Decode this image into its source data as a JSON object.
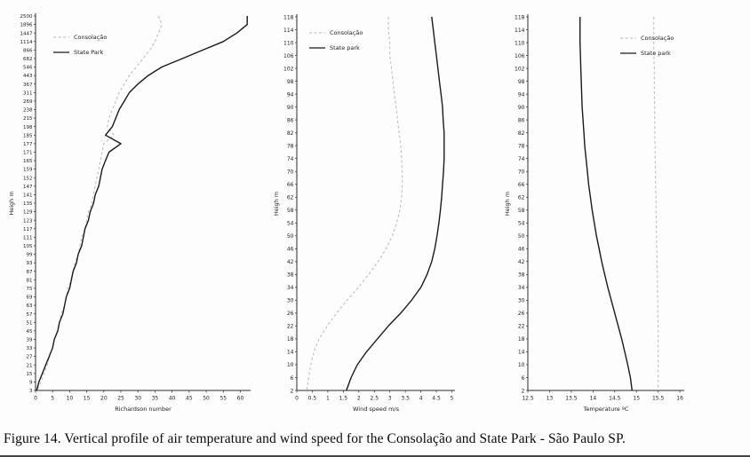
{
  "caption": "Figure 14. Vertical profile of air temperature and wind speed for the Consolação and State Park - São Paulo SP.",
  "colors": {
    "consolacao_line": "#b9b9b9",
    "state_park_line": "#1a1a1a",
    "axis": "#2b2b2b"
  },
  "chart_data": [
    {
      "type": "line",
      "title": "",
      "xlabel": "Richardson number",
      "ylabel": "Heigh m",
      "xlim": [
        0,
        63
      ],
      "x_ticks": [
        0,
        5,
        10,
        15,
        20,
        25,
        30,
        35,
        40,
        45,
        50,
        55,
        60
      ],
      "x_tick_labels": [
        "0",
        "5",
        "10",
        "15",
        "20",
        "25",
        "30",
        "35",
        "40",
        "45",
        "50",
        "55",
        "60"
      ],
      "y_categories": [
        "2500",
        "1896",
        "1447",
        "1114",
        "866",
        "682",
        "546",
        "443",
        "367",
        "311",
        "269",
        "238",
        "215",
        "198",
        "185",
        "177",
        "171",
        "165",
        "159",
        "152",
        "147",
        "141",
        "135",
        "129",
        "123",
        "117",
        "111",
        "105",
        "99",
        "93",
        "87",
        "81",
        "75",
        "69",
        "63",
        "57",
        "51",
        "45",
        "39",
        "33",
        "27",
        "21",
        "15",
        "9",
        "3"
      ],
      "legend_position": "top-left",
      "grid": false,
      "series": [
        {
          "name": "Consolação",
          "style": "dashed",
          "color": "#b9b9b9",
          "values": [
            36,
            37,
            36,
            35,
            33.5,
            31.5,
            29.5,
            27.5,
            26,
            24.5,
            23.5,
            22.5,
            21.5,
            21,
            23,
            20,
            19.5,
            19,
            18.5,
            18,
            17.5,
            17,
            16.5,
            15.5,
            15,
            14.5,
            13.5,
            13,
            12.5,
            11.5,
            11,
            10.5,
            9.5,
            9,
            8.5,
            7.5,
            7,
            6.5,
            5.5,
            5,
            4,
            3.5,
            2.5,
            1.5,
            0.5
          ]
        },
        {
          "name": "State Park",
          "style": "solid",
          "color": "#1a1a1a",
          "values": [
            62,
            62,
            59,
            55,
            49,
            43,
            37,
            33,
            30,
            27.5,
            26,
            24.5,
            23.5,
            22.5,
            20.5,
            25,
            21.5,
            20.5,
            19.5,
            19,
            18.5,
            17.5,
            17,
            16,
            15.5,
            14.5,
            14,
            13.5,
            12.5,
            12,
            11,
            10.5,
            10,
            9,
            8.5,
            8,
            7,
            6.5,
            5.5,
            5,
            4,
            3,
            2,
            1,
            0.3
          ]
        }
      ]
    },
    {
      "type": "line",
      "title": "",
      "xlabel": "Wind speed m/s",
      "ylabel": "Heigh m",
      "xlim": [
        0,
        5.1
      ],
      "x_ticks": [
        0,
        0.5,
        1,
        1.5,
        2,
        2.5,
        3,
        3.5,
        4,
        4.5,
        5
      ],
      "x_tick_labels": [
        "0",
        "0.5",
        "1",
        "1.5",
        "2",
        "2.5",
        "3",
        "3.5",
        "4",
        "4.5",
        "5"
      ],
      "y_categories": [
        "118",
        "114",
        "110",
        "106",
        "102",
        "98",
        "94",
        "90",
        "86",
        "82",
        "78",
        "74",
        "70",
        "66",
        "62",
        "58",
        "54",
        "50",
        "46",
        "42",
        "38",
        "34",
        "30",
        "26",
        "22",
        "18",
        "14",
        "10",
        "6",
        "2"
      ],
      "legend_position": "top-left",
      "grid": false,
      "series": [
        {
          "name": "Consolação",
          "style": "dashed",
          "color": "#b9b9b9",
          "values": [
            2.95,
            2.95,
            3,
            3,
            3.05,
            3.1,
            3.15,
            3.2,
            3.25,
            3.3,
            3.35,
            3.38,
            3.4,
            3.4,
            3.38,
            3.32,
            3.22,
            3.08,
            2.88,
            2.62,
            2.32,
            1.98,
            1.62,
            1.28,
            0.98,
            0.72,
            0.55,
            0.45,
            0.38,
            0.32
          ]
        },
        {
          "name": "State park",
          "style": "solid",
          "color": "#1a1a1a",
          "values": [
            4.35,
            4.4,
            4.45,
            4.5,
            4.55,
            4.6,
            4.65,
            4.7,
            4.72,
            4.75,
            4.75,
            4.75,
            4.73,
            4.7,
            4.67,
            4.63,
            4.58,
            4.52,
            4.45,
            4.35,
            4.2,
            4,
            3.7,
            3.35,
            2.95,
            2.6,
            2.25,
            1.95,
            1.75,
            1.6
          ]
        }
      ]
    },
    {
      "type": "line",
      "title": "",
      "xlabel": "Temperature ºC",
      "ylabel": "Heigh m",
      "xlim": [
        12.5,
        16.1
      ],
      "x_ticks": [
        12.5,
        13,
        13.5,
        14,
        14.5,
        15,
        15.5,
        16
      ],
      "x_tick_labels": [
        "12.5",
        "13",
        "13.5",
        "14",
        "14.5",
        "15",
        "15.5",
        "16"
      ],
      "y_categories": [
        "118",
        "114",
        "110",
        "106",
        "102",
        "98",
        "94",
        "90",
        "86",
        "82",
        "78",
        "74",
        "70",
        "66",
        "62",
        "58",
        "54",
        "50",
        "46",
        "42",
        "38",
        "34",
        "30",
        "26",
        "22",
        "18",
        "14",
        "10",
        "6",
        "2"
      ],
      "legend_position": "top-right",
      "grid": false,
      "series": [
        {
          "name": "Consolação",
          "style": "dashed",
          "color": "#b9b9b9",
          "values": [
            15.4,
            15.4,
            15.4,
            15.4,
            15.41,
            15.41,
            15.41,
            15.42,
            15.42,
            15.42,
            15.43,
            15.43,
            15.44,
            15.44,
            15.45,
            15.45,
            15.46,
            15.46,
            15.47,
            15.47,
            15.48,
            15.48,
            15.49,
            15.49,
            15.5,
            15.5,
            15.5,
            15.5,
            15.5,
            15.5
          ]
        },
        {
          "name": "State park",
          "style": "solid",
          "color": "#1a1a1a",
          "values": [
            13.7,
            13.7,
            13.7,
            13.71,
            13.72,
            13.73,
            13.74,
            13.75,
            13.77,
            13.79,
            13.81,
            13.84,
            13.87,
            13.9,
            13.94,
            13.98,
            14.03,
            14.08,
            14.14,
            14.2,
            14.27,
            14.34,
            14.42,
            14.5,
            14.58,
            14.66,
            14.73,
            14.8,
            14.86,
            14.9
          ]
        }
      ]
    }
  ]
}
